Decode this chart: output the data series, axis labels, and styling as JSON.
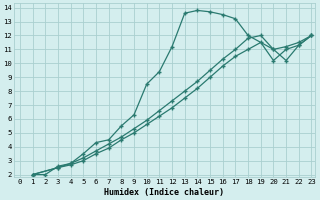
{
  "title": "",
  "xlabel": "Humidex (Indice chaleur)",
  "ylabel": "",
  "bg_color": "#d4eeee",
  "grid_color": "#aad0d0",
  "line_color": "#2a7a70",
  "xlim": [
    -0.5,
    23.3
  ],
  "ylim": [
    1.8,
    14.3
  ],
  "xticks": [
    0,
    1,
    2,
    3,
    4,
    5,
    6,
    7,
    8,
    9,
    10,
    11,
    12,
    13,
    14,
    15,
    16,
    17,
    18,
    19,
    20,
    21,
    22,
    23
  ],
  "yticks": [
    2,
    3,
    4,
    5,
    6,
    7,
    8,
    9,
    10,
    11,
    12,
    13,
    14
  ],
  "line1_x": [
    1,
    2,
    3,
    4,
    5,
    6,
    7,
    8,
    9,
    10,
    11,
    12,
    13,
    14,
    15,
    16,
    17,
    18,
    20,
    21,
    22,
    23
  ],
  "line1_y": [
    2,
    2,
    2.6,
    2.8,
    3.5,
    4.3,
    4.5,
    5.5,
    6.3,
    8.5,
    9.4,
    11.2,
    13.6,
    13.8,
    13.7,
    13.5,
    13.2,
    12.0,
    11.0,
    10.2,
    11.3,
    12.0
  ],
  "line2_x": [
    1,
    3,
    4,
    5,
    6,
    7,
    8,
    9,
    10,
    11,
    12,
    13,
    14,
    15,
    16,
    17,
    18,
    19,
    20,
    21,
    22,
    23
  ],
  "line2_y": [
    2,
    2.5,
    2.8,
    3.2,
    3.7,
    4.2,
    4.7,
    5.3,
    5.9,
    6.6,
    7.3,
    8.0,
    8.7,
    9.5,
    10.3,
    11.0,
    11.8,
    12.0,
    11.0,
    11.2,
    11.5,
    12.0
  ],
  "line3_x": [
    1,
    3,
    4,
    5,
    6,
    7,
    8,
    9,
    10,
    11,
    12,
    13,
    14,
    15,
    16,
    17,
    18,
    19,
    20,
    21,
    22,
    23
  ],
  "line3_y": [
    2,
    2.5,
    2.7,
    3.0,
    3.5,
    3.9,
    4.5,
    5.0,
    5.6,
    6.2,
    6.8,
    7.5,
    8.2,
    9.0,
    9.8,
    10.5,
    11.0,
    11.5,
    10.2,
    11.0,
    11.3,
    12.0
  ]
}
